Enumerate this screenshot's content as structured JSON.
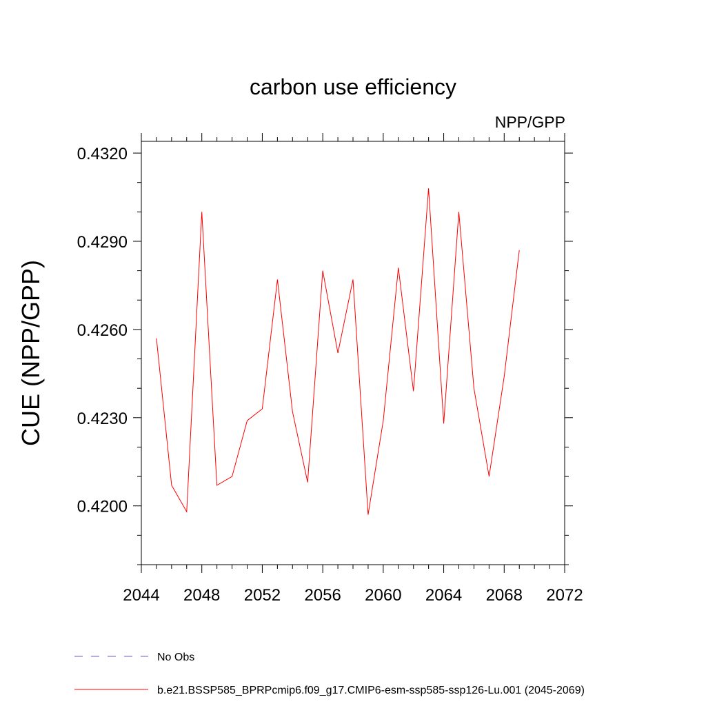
{
  "chart_data": {
    "type": "line",
    "title": "carbon use efficiency",
    "subtitle": "NPP/GPP",
    "xlabel": "",
    "ylabel": "CUE  (NPP/GPP)",
    "xlim": [
      2044,
      2072
    ],
    "ylim": [
      0.418,
      0.4324
    ],
    "x_ticks": [
      "2044",
      "2048",
      "2052",
      "2056",
      "2060",
      "2064",
      "2068",
      "2072"
    ],
    "y_ticks": [
      "0.4200",
      "0.4230",
      "0.4260",
      "0.4290",
      "0.4320"
    ],
    "grid": false,
    "legend_position": "bottom",
    "series": [
      {
        "name": "No Obs",
        "color": "#6a5acd",
        "dash": "dashed",
        "x": [],
        "y": []
      },
      {
        "name": "b.e21.BSSP585_BPRPcmip6.f09_g17.CMIP6-esm-ssp585-ssp126-Lu.001 (2045-2069)",
        "color": "#ff0000",
        "dash": "solid",
        "x": [
          2045,
          2046,
          2047,
          2048,
          2049,
          2050,
          2051,
          2052,
          2053,
          2054,
          2055,
          2056,
          2057,
          2058,
          2059,
          2060,
          2061,
          2062,
          2063,
          2064,
          2065,
          2066,
          2067,
          2068,
          2069
        ],
        "y": [
          0.4257,
          0.4207,
          0.4198,
          0.43,
          0.4207,
          0.421,
          0.4229,
          0.4233,
          0.4277,
          0.4232,
          0.4208,
          0.428,
          0.4252,
          0.4277,
          0.4197,
          0.4229,
          0.4281,
          0.4239,
          0.4308,
          0.4228,
          0.43,
          0.424,
          0.421,
          0.4244,
          0.4287
        ]
      }
    ]
  }
}
